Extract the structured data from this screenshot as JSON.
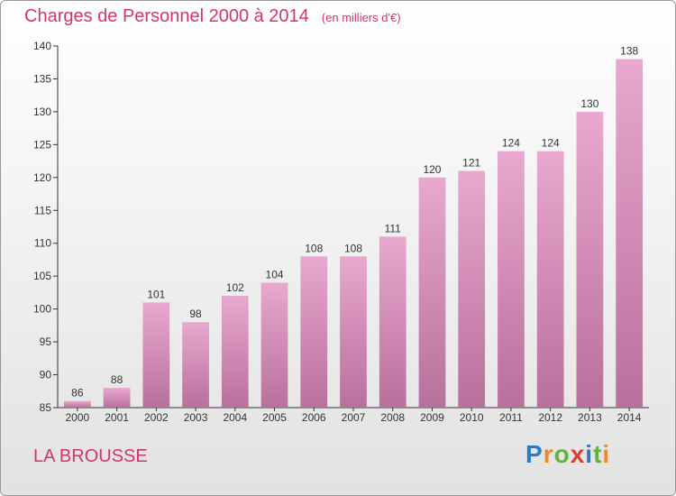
{
  "header": {
    "title": "Charges de Personnel 2000 à 2014",
    "subtitle": "(en milliers d'€)"
  },
  "footer": {
    "commune": "LA BROUSSE"
  },
  "brand": {
    "letters": [
      "P",
      "r",
      "o",
      "x",
      "i",
      "t",
      "i"
    ],
    "colors": [
      "#2f78c4",
      "#f08a1c",
      "#62b33c",
      "#e23b2e",
      "#2f78c4",
      "#62b33c",
      "#f08a1c"
    ]
  },
  "chart_data": {
    "type": "bar",
    "categories": [
      "2000",
      "2001",
      "2002",
      "2003",
      "2004",
      "2005",
      "2006",
      "2007",
      "2008",
      "2009",
      "2010",
      "2011",
      "2012",
      "2013",
      "2014"
    ],
    "values": [
      86,
      88,
      101,
      98,
      102,
      104,
      108,
      108,
      111,
      120,
      121,
      124,
      124,
      130,
      138
    ],
    "ylim": [
      85,
      140
    ],
    "yticks": [
      85,
      90,
      95,
      100,
      105,
      110,
      115,
      120,
      125,
      130,
      135,
      140
    ],
    "grid": false,
    "bar_color": "#d98cb8"
  }
}
